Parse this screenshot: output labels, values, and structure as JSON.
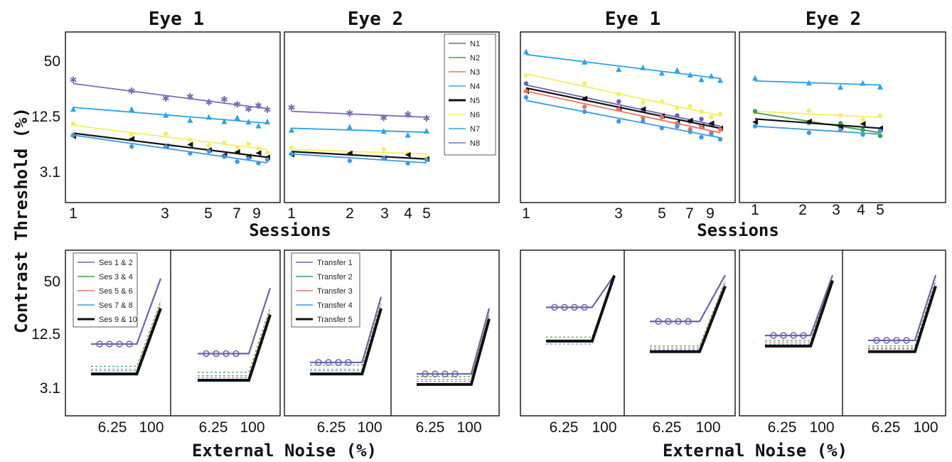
{
  "figure": {
    "ylabel": "Contrast Threshold (%)",
    "xlabel_sessions": "Sessions",
    "xlabel_noise": "External Noise (%)",
    "ytick_labels": [
      "50",
      "12.5",
      "3.1"
    ],
    "eye_titles": [
      "Eye 1",
      "Eye 2",
      "Eye 1",
      "Eye 2"
    ],
    "session_ticks_eye1": [
      "1",
      "3",
      "5",
      "7",
      "9"
    ],
    "session_ticks_eye2": [
      "1",
      "2",
      "3",
      "4",
      "5"
    ],
    "noise_tick_labels": [
      "6.25",
      "100"
    ]
  },
  "legends": {
    "learning": [
      {
        "label": "N1",
        "color": "#6a62b0",
        "marker": "diamond"
      },
      {
        "label": "N2",
        "color": "#3aa04a",
        "marker": "star"
      },
      {
        "label": "N3",
        "color": "#f07060",
        "marker": "square"
      },
      {
        "label": "N4",
        "color": "#3c9be6",
        "marker": "circle"
      },
      {
        "label": "N5",
        "color": "#111111",
        "marker": "triangle-left"
      },
      {
        "label": "N6",
        "color": "#f5ef60",
        "marker": "dot"
      },
      {
        "label": "N7",
        "color": "#2aa3e8",
        "marker": "triangle-up"
      },
      {
        "label": "N8",
        "color": "#7a6cb8",
        "marker": "hexagram"
      }
    ],
    "tvc_sessions": [
      {
        "label": "Ses 1 & 2",
        "color": "#6a62b0",
        "marker": "circle"
      },
      {
        "label": "Ses 3 & 4",
        "color": "#3aa04a",
        "marker": "star"
      },
      {
        "label": "Ses 5 & 6",
        "color": "#f07060",
        "marker": "triangle-left"
      },
      {
        "label": "Ses 7 & 8",
        "color": "#3c9be6",
        "marker": "square"
      },
      {
        "label": "Ses 9 & 10",
        "color": "#111111",
        "marker": "x"
      }
    ],
    "tvc_transfer": [
      {
        "label": "Transfer 1",
        "color": "#6a62b0",
        "marker": "circle"
      },
      {
        "label": "Transfer 2",
        "color": "#3aa04a",
        "marker": "star"
      },
      {
        "label": "Transfer 3",
        "color": "#f07060",
        "marker": "triangle-left"
      },
      {
        "label": "Transfer 4",
        "color": "#3c9be6",
        "marker": "square"
      },
      {
        "label": "Transfer 5",
        "color": "#111111",
        "marker": "x"
      }
    ]
  },
  "chart_data": [
    {
      "type": "line",
      "panel": "A-eye1-learning",
      "title": "Eye 1",
      "xlabel": "Sessions",
      "ylabel": "Contrast Threshold (%)",
      "x": [
        1,
        2,
        3,
        4,
        5,
        6,
        7,
        8,
        9,
        10
      ],
      "xscale": "log",
      "yscale": "log",
      "xlim": [
        0.95,
        11
      ],
      "ylim": [
        1.3,
        110
      ],
      "series": [
        {
          "name": "N8",
          "color": "#7a6cb8",
          "start": 29,
          "end": 15.5
        },
        {
          "name": "N7",
          "color": "#2aa3e8",
          "start": 16,
          "end": 10.8
        },
        {
          "name": "N6",
          "color": "#f5ef60",
          "start": 10.2,
          "end": 5.6
        },
        {
          "name": "N5",
          "color": "#111111",
          "start": 8.4,
          "end": 4.6
        },
        {
          "name": "N4",
          "color": "#3c9be6",
          "start": 8.0,
          "end": 4.0
        }
      ]
    },
    {
      "type": "line",
      "panel": "A-eye2-transfer",
      "title": "Eye 2",
      "x": [
        1,
        2,
        3,
        4,
        5
      ],
      "xscale": "log",
      "yscale": "log",
      "xlim": [
        0.95,
        8
      ],
      "ylim": [
        1.3,
        110
      ],
      "series": [
        {
          "name": "N8",
          "color": "#7a6cb8",
          "start": 14.5,
          "end": 12.5
        },
        {
          "name": "N7",
          "color": "#2aa3e8",
          "start": 9.5,
          "end": 8.6
        },
        {
          "name": "N6",
          "color": "#f5ef60",
          "start": 5.6,
          "end": 5.0
        },
        {
          "name": "N5",
          "color": "#111111",
          "start": 5.3,
          "end": 4.4
        },
        {
          "name": "N4",
          "color": "#3c9be6",
          "start": 5.0,
          "end": 4.0
        }
      ]
    },
    {
      "type": "line",
      "panel": "B-eye1-learning",
      "title": "Eye 1",
      "x": [
        1,
        2,
        3,
        4,
        5,
        6,
        7,
        8,
        9,
        10
      ],
      "xscale": "log",
      "yscale": "log",
      "xlim": [
        0.95,
        11
      ],
      "ylim": [
        1.3,
        110
      ],
      "series": [
        {
          "name": "N7",
          "color": "#2aa3e8",
          "start": 60,
          "end": 33
        },
        {
          "name": "N6",
          "color": "#f5ef60",
          "start": 37,
          "end": 13
        },
        {
          "name": "N1",
          "color": "#6a62b0",
          "start": 28,
          "end": 10
        },
        {
          "name": "N5",
          "color": "#111111",
          "start": 26,
          "end": 9.5
        },
        {
          "name": "N3",
          "color": "#f07060",
          "start": 24,
          "end": 8.5
        },
        {
          "name": "N4",
          "color": "#3c9be6",
          "start": 19,
          "end": 7.5
        }
      ]
    },
    {
      "type": "line",
      "panel": "B-eye2-transfer",
      "title": "Eye 2",
      "x": [
        1,
        2,
        3,
        4,
        5
      ],
      "xscale": "log",
      "yscale": "log",
      "xlim": [
        0.95,
        8
      ],
      "ylim": [
        1.3,
        110
      ],
      "series": [
        {
          "name": "N7",
          "color": "#2aa3e8",
          "start": 31,
          "end": 28
        },
        {
          "name": "N6",
          "color": "#f5ef60",
          "start": 14.5,
          "end": 12.5
        },
        {
          "name": "N2",
          "color": "#3aa04a",
          "start": 14,
          "end": 8.5
        },
        {
          "name": "N5",
          "color": "#111111",
          "start": 12,
          "end": 9.5
        },
        {
          "name": "N4",
          "color": "#3c9be6",
          "start": 10,
          "end": 8.2
        }
      ]
    },
    {
      "type": "line",
      "panel": "TvC",
      "xlabel": "External Noise (%)",
      "ylabel": "Contrast Threshold (%)",
      "xscale": "log",
      "yscale": "log",
      "xtick_labels": [
        "6.25",
        "100"
      ],
      "ylim": [
        1.3,
        110
      ],
      "subpanels": [
        {
          "floors": [
            10.0,
            5.6,
            5.2,
            5.0,
            4.6
          ],
          "knee": 0.7
        },
        {
          "floors": [
            7.8,
            4.8,
            4.4,
            4.2,
            3.9
          ],
          "knee": 0.75
        },
        {
          "floors": [
            6.2,
            5.8,
            5.2,
            5.0,
            4.6
          ],
          "knee": 0.78
        },
        {
          "floors": [
            4.6,
            4.3,
            4.0,
            3.8,
            3.5
          ],
          "knee": 0.8
        },
        {
          "floors": [
            26,
            12,
            11,
            10,
            10.8
          ],
          "knee": 0.72
        },
        {
          "floors": [
            18,
            9.5,
            9,
            8.6,
            8.2
          ],
          "knee": 0.7
        },
        {
          "floors": [
            12.5,
            11,
            10.5,
            10,
            9.5
          ],
          "knee": 0.72
        },
        {
          "floors": [
            11,
            9.5,
            9,
            8.8,
            8.2
          ],
          "knee": 0.74
        }
      ]
    }
  ]
}
